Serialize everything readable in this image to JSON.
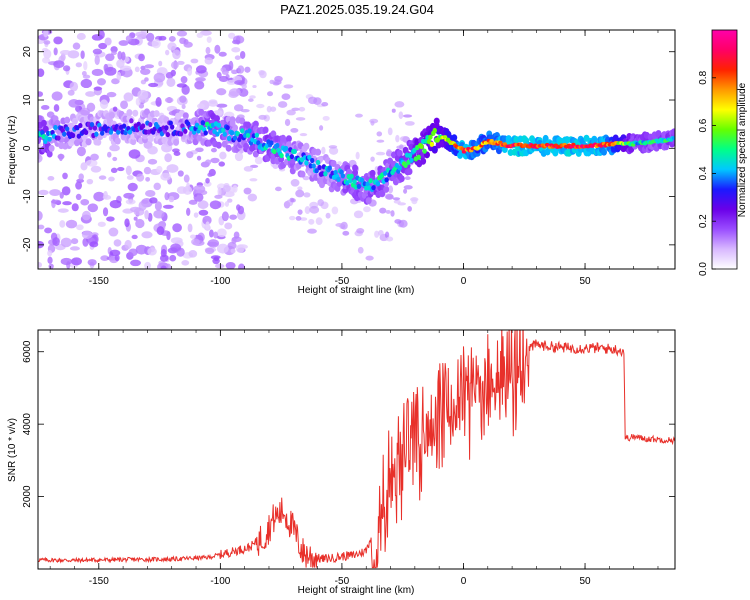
{
  "title": "PAZ1.2025.035.19.24.G04",
  "chart_data": [
    {
      "type": "heatmap",
      "title": "PAZ1.2025.035.19.24.G04",
      "xlabel": "Height of straight line (km)",
      "ylabel": "Frequency (Hz)",
      "xlim": [
        -175,
        87
      ],
      "ylim": [
        -25,
        24.5
      ],
      "xticks": [
        -150,
        -100,
        -50,
        0,
        50
      ],
      "yticks": [
        -20,
        -10,
        0,
        10,
        20
      ],
      "colorbar": {
        "label": "Normalized spectral amplitude",
        "range": [
          0,
          1
        ],
        "ticks": [
          0.0,
          0.2,
          0.4,
          0.6,
          0.8
        ],
        "colormap": [
          "#ffffff",
          "#d8b8ff",
          "#9a4dff",
          "#6a00e8",
          "#1a1aff",
          "#00c8ff",
          "#00ff88",
          "#66ff00",
          "#ffff00",
          "#ff9900",
          "#ff2200",
          "#ff0066",
          "#ff00aa"
        ]
      },
      "ridge": [
        {
          "x": -170,
          "f": 3,
          "a": 0.35
        },
        {
          "x": -160,
          "f": 3.5,
          "a": 0.3
        },
        {
          "x": -150,
          "f": 4,
          "a": 0.3
        },
        {
          "x": -140,
          "f": 4.5,
          "a": 0.3
        },
        {
          "x": -130,
          "f": 4.5,
          "a": 0.3
        },
        {
          "x": -120,
          "f": 4,
          "a": 0.28
        },
        {
          "x": -110,
          "f": 4.5,
          "a": 0.35
        },
        {
          "x": -103,
          "f": 4,
          "a": 0.45
        },
        {
          "x": -95,
          "f": 3,
          "a": 0.35
        },
        {
          "x": -88,
          "f": 2.5,
          "a": 0.4
        },
        {
          "x": -80,
          "f": 0.5,
          "a": 0.45
        },
        {
          "x": -73,
          "f": -1,
          "a": 0.4
        },
        {
          "x": -65,
          "f": -2.5,
          "a": 0.35
        },
        {
          "x": -58,
          "f": -4.5,
          "a": 0.35
        },
        {
          "x": -50,
          "f": -6,
          "a": 0.4
        },
        {
          "x": -45,
          "f": -7,
          "a": 0.45
        },
        {
          "x": -40,
          "f": -8,
          "a": 0.4
        },
        {
          "x": -35,
          "f": -7.5,
          "a": 0.45
        },
        {
          "x": -30,
          "f": -5,
          "a": 0.4
        },
        {
          "x": -25,
          "f": -3,
          "a": 0.45
        },
        {
          "x": -20,
          "f": -1.5,
          "a": 0.5
        },
        {
          "x": -15,
          "f": 1,
          "a": 0.55
        },
        {
          "x": -11,
          "f": 3,
          "a": 0.6
        },
        {
          "x": -7,
          "f": 2,
          "a": 0.6
        },
        {
          "x": -3,
          "f": 0.5,
          "a": 0.75
        },
        {
          "x": 0,
          "f": -0.5,
          "a": 0.85
        },
        {
          "x": 5,
          "f": 0,
          "a": 0.75
        },
        {
          "x": 10,
          "f": 1.5,
          "a": 0.75
        },
        {
          "x": 15,
          "f": 1,
          "a": 0.8
        },
        {
          "x": 20,
          "f": 0.5,
          "a": 0.85
        },
        {
          "x": 30,
          "f": 0.5,
          "a": 0.85
        },
        {
          "x": 40,
          "f": 0.5,
          "a": 0.85
        },
        {
          "x": 50,
          "f": 0.5,
          "a": 0.85
        },
        {
          "x": 60,
          "f": 0.8,
          "a": 0.8
        },
        {
          "x": 70,
          "f": 1,
          "a": 0.45
        },
        {
          "x": 80,
          "f": 1.5,
          "a": 0.45
        },
        {
          "x": 86,
          "f": 2,
          "a": 0.45
        }
      ]
    },
    {
      "type": "line",
      "xlabel": "Height of straight line (km)",
      "ylabel": "SNR (10 * v/v)",
      "xlim": [
        -175,
        87
      ],
      "ylim": [
        0,
        6600
      ],
      "xticks": [
        -150,
        -100,
        -50,
        0,
        50
      ],
      "yticks": [
        2000,
        4000,
        6000
      ],
      "color": "#e8302a",
      "series": [
        {
          "x": [
            -175,
            -160,
            -140,
            -120,
            -105,
            -95,
            -88,
            -82,
            -78,
            -74,
            -70,
            -66,
            -62,
            -58,
            -54,
            -50,
            -45,
            -40,
            -38,
            -35,
            -32,
            -28,
            -24,
            -20,
            -16,
            -12,
            -8,
            -4,
            0,
            4,
            8,
            12,
            16,
            20,
            24,
            27,
            30,
            35,
            40,
            45,
            50,
            55,
            60,
            64,
            66,
            66.5,
            70,
            75,
            80,
            87
          ],
          "y": [
            250,
            240,
            260,
            270,
            320,
            480,
            600,
            900,
            1400,
            1600,
            1100,
            450,
            320,
            280,
            300,
            350,
            380,
            500,
            900,
            1800,
            2600,
            3200,
            3500,
            3800,
            4100,
            4500,
            4700,
            4800,
            5000,
            5200,
            5400,
            5500,
            5600,
            5800,
            5950,
            6100,
            6200,
            6150,
            6120,
            6100,
            6100,
            6100,
            6080,
            6050,
            6000,
            3600,
            3650,
            3600,
            3580,
            3550
          ]
        }
      ]
    }
  ]
}
